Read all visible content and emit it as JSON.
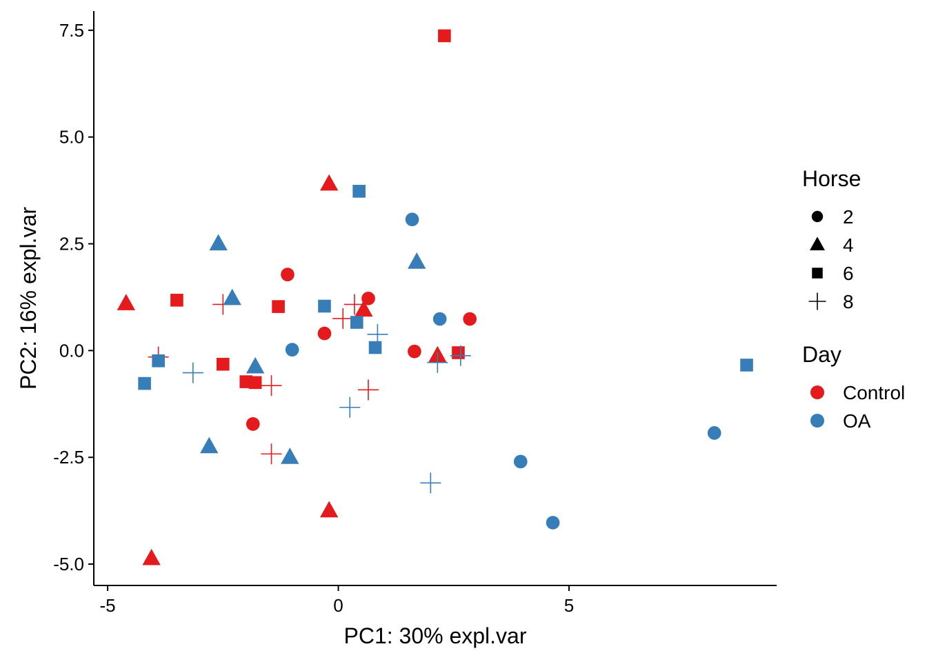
{
  "chart_data": {
    "type": "scatter",
    "title": "",
    "xlabel": "PC1: 30% expl.var",
    "ylabel": "PC2: 16% expl.var",
    "xlim": [
      -5.3,
      9.5
    ],
    "ylim": [
      -5.5,
      7.95
    ],
    "x_ticks": [
      -5,
      0,
      5
    ],
    "x_tick_labels": [
      "-5",
      "0",
      "5"
    ],
    "y_ticks": [
      -5,
      -2.5,
      0,
      2.5,
      5,
      7.5
    ],
    "y_tick_labels": [
      "-5.0",
      "-2.5",
      "0.0",
      "2.5",
      "5.0",
      "7.5"
    ],
    "grid": false,
    "legend_position": "right",
    "shape_legend": {
      "title": "Horse",
      "entries": [
        {
          "label": "2",
          "shape": "circle"
        },
        {
          "label": "4",
          "shape": "triangle"
        },
        {
          "label": "6",
          "shape": "square"
        },
        {
          "label": "8",
          "shape": "plus"
        }
      ]
    },
    "color_legend": {
      "title": "Day",
      "entries": [
        {
          "label": "Control",
          "color": "#E41A1C"
        },
        {
          "label": "OA",
          "color": "#377EB8"
        }
      ]
    },
    "points": [
      {
        "x": -1.1,
        "y": 1.78,
        "horse": "2",
        "day": "Control"
      },
      {
        "x": 0.65,
        "y": 1.22,
        "horse": "2",
        "day": "Control"
      },
      {
        "x": -0.3,
        "y": 0.4,
        "horse": "2",
        "day": "Control"
      },
      {
        "x": 2.85,
        "y": 0.74,
        "horse": "2",
        "day": "Control"
      },
      {
        "x": 1.65,
        "y": -0.02,
        "horse": "2",
        "day": "Control"
      },
      {
        "x": -1.85,
        "y": -1.72,
        "horse": "2",
        "day": "Control"
      },
      {
        "x": -0.2,
        "y": 3.9,
        "horse": "4",
        "day": "Control"
      },
      {
        "x": -4.6,
        "y": 1.1,
        "horse": "4",
        "day": "Control"
      },
      {
        "x": 0.55,
        "y": 0.95,
        "horse": "4",
        "day": "Control"
      },
      {
        "x": 2.15,
        "y": -0.12,
        "horse": "4",
        "day": "Control"
      },
      {
        "x": -0.2,
        "y": -3.75,
        "horse": "4",
        "day": "Control"
      },
      {
        "x": -4.05,
        "y": -4.87,
        "horse": "4",
        "day": "Control"
      },
      {
        "x": 2.3,
        "y": 7.37,
        "horse": "6",
        "day": "Control"
      },
      {
        "x": -3.5,
        "y": 1.18,
        "horse": "6",
        "day": "Control"
      },
      {
        "x": -1.3,
        "y": 1.03,
        "horse": "6",
        "day": "Control"
      },
      {
        "x": -2.5,
        "y": -0.32,
        "horse": "6",
        "day": "Control"
      },
      {
        "x": -2.0,
        "y": -0.73,
        "horse": "6",
        "day": "Control"
      },
      {
        "x": -1.8,
        "y": -0.75,
        "horse": "6",
        "day": "Control"
      },
      {
        "x": 2.6,
        "y": -0.05,
        "horse": "6",
        "day": "Control"
      },
      {
        "x": -2.5,
        "y": 1.08,
        "horse": "8",
        "day": "Control"
      },
      {
        "x": 0.35,
        "y": 1.08,
        "horse": "8",
        "day": "Control"
      },
      {
        "x": 0.1,
        "y": 0.75,
        "horse": "8",
        "day": "Control"
      },
      {
        "x": -3.9,
        "y": -0.15,
        "horse": "8",
        "day": "Control"
      },
      {
        "x": -1.45,
        "y": -0.82,
        "horse": "8",
        "day": "Control"
      },
      {
        "x": 0.65,
        "y": -0.92,
        "horse": "8",
        "day": "Control"
      },
      {
        "x": -1.45,
        "y": -2.42,
        "horse": "8",
        "day": "Control"
      },
      {
        "x": 1.6,
        "y": 3.07,
        "horse": "2",
        "day": "OA"
      },
      {
        "x": 2.2,
        "y": 0.74,
        "horse": "2",
        "day": "OA"
      },
      {
        "x": -1.0,
        "y": 0.02,
        "horse": "2",
        "day": "OA"
      },
      {
        "x": 8.15,
        "y": -1.93,
        "horse": "2",
        "day": "OA"
      },
      {
        "x": 3.95,
        "y": -2.6,
        "horse": "2",
        "day": "OA"
      },
      {
        "x": 4.65,
        "y": -4.03,
        "horse": "2",
        "day": "OA"
      },
      {
        "x": -2.6,
        "y": 2.5,
        "horse": "4",
        "day": "OA"
      },
      {
        "x": 1.7,
        "y": 2.07,
        "horse": "4",
        "day": "OA"
      },
      {
        "x": -2.3,
        "y": 1.22,
        "horse": "4",
        "day": "OA"
      },
      {
        "x": -1.8,
        "y": -0.38,
        "horse": "4",
        "day": "OA"
      },
      {
        "x": -2.8,
        "y": -2.25,
        "horse": "4",
        "day": "OA"
      },
      {
        "x": -1.05,
        "y": -2.5,
        "horse": "4",
        "day": "OA"
      },
      {
        "x": 0.45,
        "y": 3.73,
        "horse": "6",
        "day": "OA"
      },
      {
        "x": -0.3,
        "y": 1.04,
        "horse": "6",
        "day": "OA"
      },
      {
        "x": 0.4,
        "y": 0.66,
        "horse": "6",
        "day": "OA"
      },
      {
        "x": 0.8,
        "y": 0.07,
        "horse": "6",
        "day": "OA"
      },
      {
        "x": -3.9,
        "y": -0.24,
        "horse": "6",
        "day": "OA"
      },
      {
        "x": -4.2,
        "y": -0.77,
        "horse": "6",
        "day": "OA"
      },
      {
        "x": 8.85,
        "y": -0.34,
        "horse": "6",
        "day": "OA"
      },
      {
        "x": 0.85,
        "y": 0.38,
        "horse": "8",
        "day": "OA"
      },
      {
        "x": 2.15,
        "y": -0.28,
        "horse": "8",
        "day": "OA"
      },
      {
        "x": 2.65,
        "y": -0.12,
        "horse": "8",
        "day": "OA"
      },
      {
        "x": -3.15,
        "y": -0.52,
        "horse": "8",
        "day": "OA"
      },
      {
        "x": 0.25,
        "y": -1.33,
        "horse": "8",
        "day": "OA"
      },
      {
        "x": 2.0,
        "y": -3.1,
        "horse": "8",
        "day": "OA"
      }
    ]
  }
}
